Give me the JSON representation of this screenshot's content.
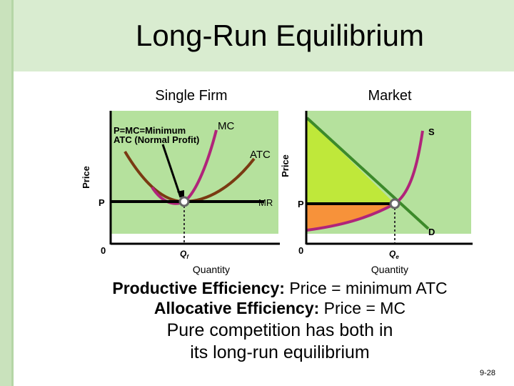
{
  "header": {
    "title": "Long-Run Equilibrium"
  },
  "firm": {
    "title": "Single Firm",
    "note": [
      "P=MC=Minimum",
      "ATC (Normal Profit)"
    ],
    "mc": "MC",
    "atc": "ATC",
    "mr": "MR",
    "y_axis": "Price",
    "price": "P",
    "origin": "0",
    "quantity_mark": {
      "main": "Q",
      "sub": "f"
    },
    "x_axis": "Quantity"
  },
  "market": {
    "title": "Market",
    "supply": "S",
    "demand": "D",
    "y_axis": "Price",
    "price": "P",
    "origin": "0",
    "quantity_mark": {
      "main": "Q",
      "sub": "e"
    },
    "x_axis": "Quantity"
  },
  "body": {
    "lines": [
      {
        "bold": "Productive Efficiency:",
        "rest": " Price = minimum ATC"
      },
      {
        "bold": "Allocative Efficiency:",
        "rest": " Price = MC"
      }
    ],
    "summary": [
      "Pure competition has both in",
      "its long-run equilibrium"
    ]
  },
  "footer": {
    "page": "9-28"
  }
}
